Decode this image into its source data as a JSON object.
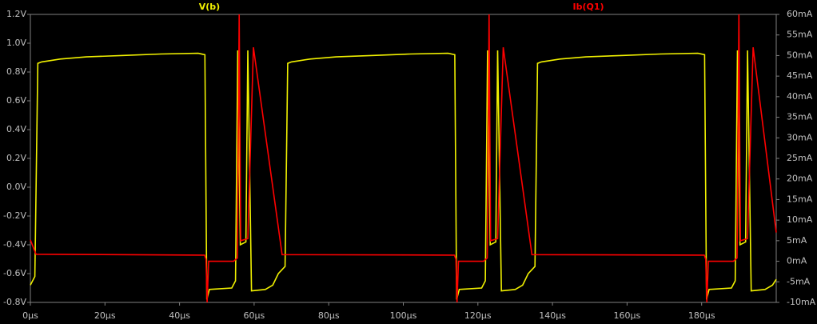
{
  "chart_data": {
    "type": "line",
    "xlim": [
      0,
      200
    ],
    "xticks": [
      {
        "value": 0,
        "label": "0µs"
      },
      {
        "value": 20,
        "label": "20µs"
      },
      {
        "value": 40,
        "label": "40µs"
      },
      {
        "value": 60,
        "label": "60µs"
      },
      {
        "value": 80,
        "label": "80µs"
      },
      {
        "value": 100,
        "label": "100µs"
      },
      {
        "value": 120,
        "label": "120µs"
      },
      {
        "value": 140,
        "label": "140µs"
      },
      {
        "value": 160,
        "label": "160µs"
      },
      {
        "value": 180,
        "label": "180µs"
      }
    ],
    "ylim": [
      -0.8,
      1.2
    ],
    "yticks": [
      {
        "value": 1.2,
        "label": "1.2V"
      },
      {
        "value": 1.0,
        "label": "1.0V"
      },
      {
        "value": 0.8,
        "label": "0.8V"
      },
      {
        "value": 0.6,
        "label": "0.6V"
      },
      {
        "value": 0.4,
        "label": "0.4V"
      },
      {
        "value": 0.2,
        "label": "0.2V"
      },
      {
        "value": 0.0,
        "label": "0.0V"
      },
      {
        "value": -0.2,
        "label": "-0.2V"
      },
      {
        "value": -0.4,
        "label": "-0.4V"
      },
      {
        "value": -0.6,
        "label": "-0.6V"
      },
      {
        "value": -0.8,
        "label": "-0.8V"
      }
    ],
    "y2lim": [
      -10,
      60
    ],
    "y2ticks": [
      {
        "value": 60,
        "label": "60mA"
      },
      {
        "value": 55,
        "label": "55mA"
      },
      {
        "value": 50,
        "label": "50mA"
      },
      {
        "value": 45,
        "label": "45mA"
      },
      {
        "value": 40,
        "label": "40mA"
      },
      {
        "value": 35,
        "label": "35mA"
      },
      {
        "value": 30,
        "label": "30mA"
      },
      {
        "value": 25,
        "label": "25mA"
      },
      {
        "value": 20,
        "label": "20mA"
      },
      {
        "value": 15,
        "label": "15mA"
      },
      {
        "value": 10,
        "label": "10mA"
      },
      {
        "value": 5,
        "label": "5mA"
      },
      {
        "value": 0,
        "label": "0mA"
      },
      {
        "value": -5,
        "label": "-5mA"
      },
      {
        "value": -10,
        "label": "-10mA"
      }
    ],
    "grid": false,
    "series": [
      {
        "name": "V(b)",
        "color": "#f0f000",
        "x": [
          0,
          1.2,
          2,
          3,
          8,
          15,
          25,
          35,
          45,
          46.8,
          47.3,
          48,
          54,
          55,
          55.6,
          56.3,
          57.8,
          58.3,
          59.3,
          63,
          65,
          66.5,
          68.3,
          69,
          70,
          75,
          82,
          92,
          102,
          112,
          113.8,
          114.3,
          115,
          121,
          122,
          122.6,
          123.3,
          124.8,
          125.3,
          126.3,
          130,
          132,
          133.5,
          135.3,
          136,
          137,
          142,
          149,
          159,
          169,
          179,
          180.8,
          181.3,
          182,
          188,
          189,
          189.6,
          190.3,
          191.8,
          192.3,
          193.3,
          197,
          199,
          200
        ],
        "values": [
          -0.68,
          -0.62,
          0.86,
          0.87,
          0.89,
          0.905,
          0.915,
          0.925,
          0.93,
          0.92,
          -0.78,
          -0.71,
          -0.7,
          -0.65,
          0.95,
          -0.4,
          -0.38,
          0.95,
          -0.72,
          -0.71,
          -0.68,
          -0.6,
          -0.55,
          0.86,
          0.87,
          0.89,
          0.905,
          0.915,
          0.925,
          0.93,
          0.92,
          -0.78,
          -0.71,
          -0.7,
          -0.65,
          0.95,
          -0.4,
          -0.38,
          0.95,
          -0.72,
          -0.71,
          -0.68,
          -0.6,
          -0.55,
          0.86,
          0.87,
          0.89,
          0.905,
          0.915,
          0.925,
          0.93,
          0.92,
          -0.78,
          -0.71,
          -0.7,
          -0.65,
          0.95,
          -0.4,
          -0.38,
          0.95,
          -0.72,
          -0.71,
          -0.68,
          -0.64
        ]
      },
      {
        "name": "Ib(Q1)",
        "color": "#ff0000",
        "axis": "y2",
        "x": [
          0,
          1.5,
          46.7,
          47.1,
          47.4,
          47.8,
          54.5,
          55.5,
          56,
          56.4,
          58.3,
          59.8,
          67.5,
          113.7,
          114.1,
          114.4,
          114.8,
          121.5,
          122.5,
          123,
          123.4,
          125.3,
          126.8,
          134.5,
          180.7,
          181.1,
          181.4,
          181.8,
          188.5,
          189.5,
          190,
          190.4,
          192.3,
          193.8,
          200
        ],
        "values": [
          5.2,
          1.7,
          1.5,
          0.5,
          -10,
          0,
          0,
          0.8,
          60,
          5,
          5.5,
          52,
          1.6,
          1.5,
          0.5,
          -10,
          0,
          0,
          0.8,
          60,
          5,
          5.5,
          52,
          1.6,
          1.5,
          0.5,
          -10,
          0,
          0,
          0.8,
          60,
          5,
          5.5,
          52,
          7
        ]
      }
    ]
  }
}
